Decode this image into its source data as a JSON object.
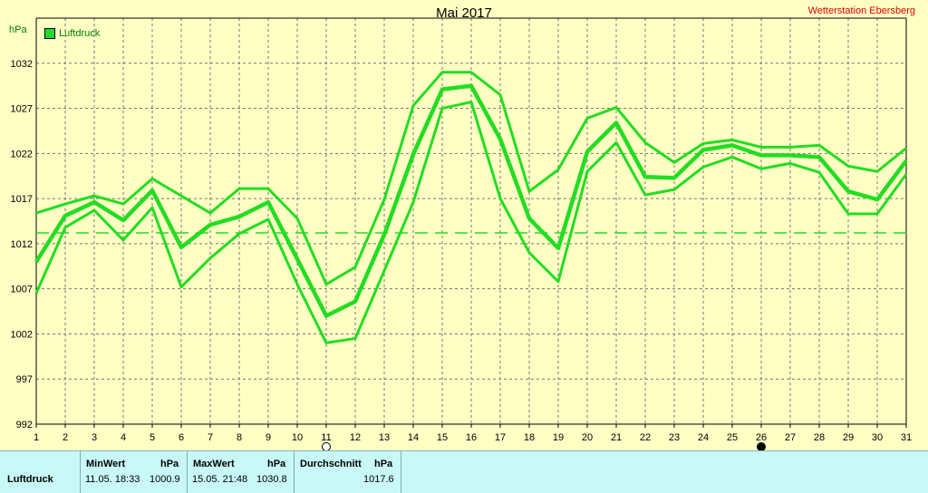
{
  "header": {
    "title": "Mai 2017",
    "station": "Wetterstation Ebersberg",
    "unit": "hPa",
    "legend": "Luftdruck"
  },
  "chart_data": {
    "type": "line",
    "title": "Mai 2017",
    "ylabel": "hPa",
    "ylim": [
      992,
      1037
    ],
    "yticks": [
      992,
      997,
      1002,
      1007,
      1012,
      1017,
      1022,
      1027,
      1032
    ],
    "x": [
      1,
      2,
      3,
      4,
      5,
      6,
      7,
      8,
      9,
      10,
      11,
      12,
      13,
      14,
      15,
      16,
      17,
      18,
      19,
      20,
      21,
      22,
      23,
      24,
      25,
      26,
      27,
      28,
      29,
      30,
      31
    ],
    "grid": true,
    "legend_position": "top-left",
    "reference_line": 1013.2,
    "series": [
      {
        "name": "Luftdruck",
        "role": "max",
        "values": [
          1015.4,
          1016.4,
          1017.3,
          1016.4,
          1019.2,
          1017.3,
          1015.4,
          1018.1,
          1018.1,
          1014.8,
          1007.5,
          1009.4,
          1016.9,
          1027.3,
          1031.0,
          1031.0,
          1028.5,
          1017.8,
          1020.2,
          1025.9,
          1027.1,
          1023.2,
          1021.0,
          1023.1,
          1023.5,
          1022.7,
          1022.7,
          1022.9,
          1020.6,
          1020.0,
          1022.6
        ]
      },
      {
        "name": "Luftdruck",
        "role": "mean",
        "values": [
          1010.0,
          1015.1,
          1016.6,
          1014.6,
          1017.9,
          1011.6,
          1014.1,
          1015.0,
          1016.6,
          1010.3,
          1004.0,
          1005.6,
          1013.0,
          1021.9,
          1029.1,
          1029.5,
          1023.6,
          1014.8,
          1011.5,
          1022.2,
          1025.4,
          1019.4,
          1019.3,
          1022.4,
          1022.9,
          1021.8,
          1021.8,
          1021.6,
          1017.8,
          1016.9,
          1021.2
        ]
      },
      {
        "name": "Luftdruck",
        "role": "min",
        "values": [
          1006.5,
          1013.8,
          1015.7,
          1012.4,
          1016.0,
          1007.2,
          1010.4,
          1013.1,
          1014.7,
          1007.5,
          1001.0,
          1001.5,
          1009.0,
          1016.6,
          1027.0,
          1027.7,
          1017.0,
          1011.0,
          1007.8,
          1020.0,
          1023.2,
          1017.4,
          1018.0,
          1020.5,
          1021.6,
          1020.3,
          1020.9,
          1019.9,
          1015.3,
          1015.3,
          1019.7
        ]
      }
    ],
    "markers": [
      {
        "day": 11,
        "symbol": "new-moon-open"
      },
      {
        "day": 26,
        "symbol": "full-moon-filled"
      }
    ]
  },
  "stats": {
    "row_label": "Luftdruck",
    "min": {
      "header": "MinWert",
      "unit": "hPa",
      "datetime": "11.05. 18:33",
      "value": "1000.9"
    },
    "max": {
      "header": "MaxWert",
      "unit": "hPa",
      "datetime": "15.05. 21:48",
      "value": "1030.8"
    },
    "avg": {
      "header": "Durchschnitt",
      "unit": "hPa",
      "value": "1017.6"
    }
  },
  "colors": {
    "background": "#FFFFC4",
    "line": "#22DD22",
    "grid": "#777777",
    "station": "#E00000",
    "stats_background": "#C8F8F8"
  }
}
